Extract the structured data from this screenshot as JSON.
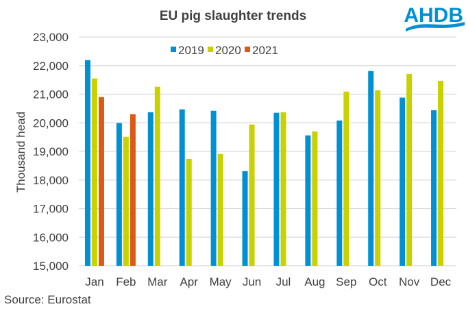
{
  "chart_data": {
    "type": "bar",
    "title": "EU pig slaughter trends",
    "xlabel": "",
    "ylabel": "Thousand head",
    "ylim": [
      15000,
      23000
    ],
    "yticks": [
      15000,
      16000,
      17000,
      18000,
      19000,
      20000,
      21000,
      22000,
      23000
    ],
    "ytick_labels": [
      "15,000",
      "16,000",
      "17,000",
      "18,000",
      "19,000",
      "20,000",
      "21,000",
      "22,000",
      "23,000"
    ],
    "grid": true,
    "legend_position": "top-center",
    "categories": [
      "Jan",
      "Feb",
      "Mar",
      "Apr",
      "May",
      "Jun",
      "Jul",
      "Aug",
      "Sep",
      "Oct",
      "Nov",
      "Dec"
    ],
    "series": [
      {
        "name": "2019",
        "color": "#0290D4",
        "values": [
          22190,
          19990,
          20370,
          20470,
          20420,
          18310,
          20350,
          19560,
          20080,
          21810,
          20880,
          20440
        ]
      },
      {
        "name": "2020",
        "color": "#C9D200",
        "values": [
          21550,
          19510,
          21260,
          18740,
          18910,
          19940,
          20370,
          19700,
          21090,
          21140,
          21710,
          21470
        ]
      },
      {
        "name": "2021",
        "color": "#DC5A17",
        "values": [
          20900,
          20300,
          null,
          null,
          null,
          null,
          null,
          null,
          null,
          null,
          null,
          null
        ]
      }
    ]
  },
  "source": "Source: Eurostat",
  "logo": {
    "text": "AHDB",
    "color": "#0290D4"
  }
}
